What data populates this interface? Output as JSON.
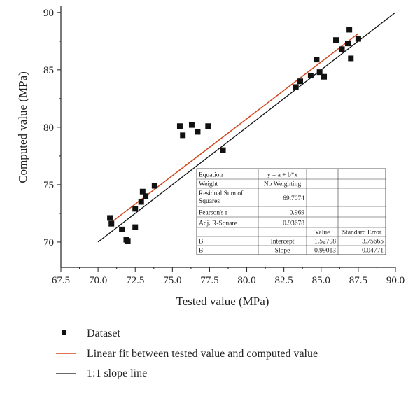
{
  "chart_data": {
    "type": "scatter",
    "xlabel": "Tested value (MPa)",
    "ylabel": "Computed value (MPa)",
    "xlim": [
      67.5,
      90.0
    ],
    "ylim": [
      67.8,
      90.6
    ],
    "x_ticks": [
      "67.5",
      "70.0",
      "72.5",
      "75.0",
      "77.5",
      "80.0",
      "82.5",
      "85.0",
      "87.5",
      "90.0"
    ],
    "y_ticks": [
      "70",
      "75",
      "80",
      "85",
      "90"
    ],
    "grid": false,
    "legend_position": "bottom",
    "series": [
      {
        "name": "Dataset",
        "kind": "scatter",
        "color": "#111111",
        "points": [
          [
            70.8,
            72.1
          ],
          [
            70.9,
            71.6
          ],
          [
            71.6,
            71.1
          ],
          [
            71.9,
            70.2
          ],
          [
            72.0,
            70.1
          ],
          [
            72.5,
            71.3
          ],
          [
            72.5,
            72.9
          ],
          [
            72.9,
            73.5
          ],
          [
            73.0,
            74.4
          ],
          [
            73.2,
            74.0
          ],
          [
            73.8,
            74.9
          ],
          [
            75.5,
            80.1
          ],
          [
            75.7,
            79.3
          ],
          [
            76.3,
            80.2
          ],
          [
            76.7,
            79.6
          ],
          [
            77.4,
            80.1
          ],
          [
            78.4,
            78.0
          ],
          [
            83.3,
            83.5
          ],
          [
            83.6,
            84.0
          ],
          [
            84.3,
            84.5
          ],
          [
            84.7,
            85.9
          ],
          [
            84.9,
            84.8
          ],
          [
            85.2,
            84.4
          ],
          [
            86.0,
            87.6
          ],
          [
            86.4,
            86.8
          ],
          [
            86.8,
            87.3
          ],
          [
            86.9,
            88.5
          ],
          [
            87.0,
            86.0
          ],
          [
            87.5,
            87.7
          ]
        ]
      },
      {
        "name": "Linear fit between tested value and computed value",
        "kind": "line",
        "color": "#d2461e",
        "x_range": [
          70.8,
          87.5
        ],
        "intercept": 1.52708,
        "slope": 0.99013
      },
      {
        "name": "1:1 slope line",
        "kind": "line",
        "color": "#111111",
        "points": [
          [
            70.0,
            70.0
          ],
          [
            90.0,
            90.0
          ]
        ]
      }
    ],
    "stats_table": {
      "rows": [
        [
          "Equation",
          "y = a + b*x",
          "",
          ""
        ],
        [
          "Weight",
          "No Weighting",
          "",
          ""
        ],
        [
          "Residual Sum of Squares",
          "69.7074",
          "",
          ""
        ],
        [
          "Pearson's r",
          "0.969",
          "",
          ""
        ],
        [
          "Adj. R-Square",
          "0.93678",
          "",
          ""
        ],
        [
          "",
          "",
          "Value",
          "Standard Error"
        ],
        [
          "B",
          "Intercept",
          "1.52708",
          "3.75665"
        ],
        [
          "B",
          "Slope",
          "0.99013",
          "0.04771"
        ]
      ]
    }
  }
}
